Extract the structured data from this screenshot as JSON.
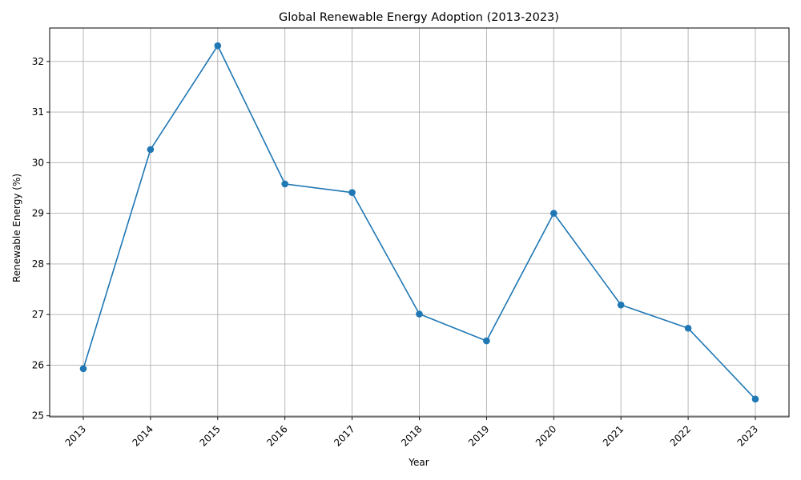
{
  "chart_data": {
    "type": "line",
    "title": "Global Renewable Energy Adoption (2013-2023)",
    "xlabel": "Year",
    "ylabel": "Renewable Energy (%)",
    "categories": [
      "2013",
      "2014",
      "2015",
      "2016",
      "2017",
      "2018",
      "2019",
      "2020",
      "2021",
      "2022",
      "2023"
    ],
    "series": [
      {
        "values": [
          25.93,
          30.26,
          32.31,
          29.58,
          29.41,
          27.01,
          26.48,
          29.0,
          27.19,
          26.73,
          25.33
        ],
        "color": "#1f77b4",
        "marker": "circle"
      }
    ],
    "ylim": [
      24.98,
      32.66
    ],
    "yticks": [
      "25",
      "26",
      "27",
      "28",
      "29",
      "30",
      "31",
      "32"
    ],
    "grid": true,
    "x_tick_rotation": 45
  }
}
